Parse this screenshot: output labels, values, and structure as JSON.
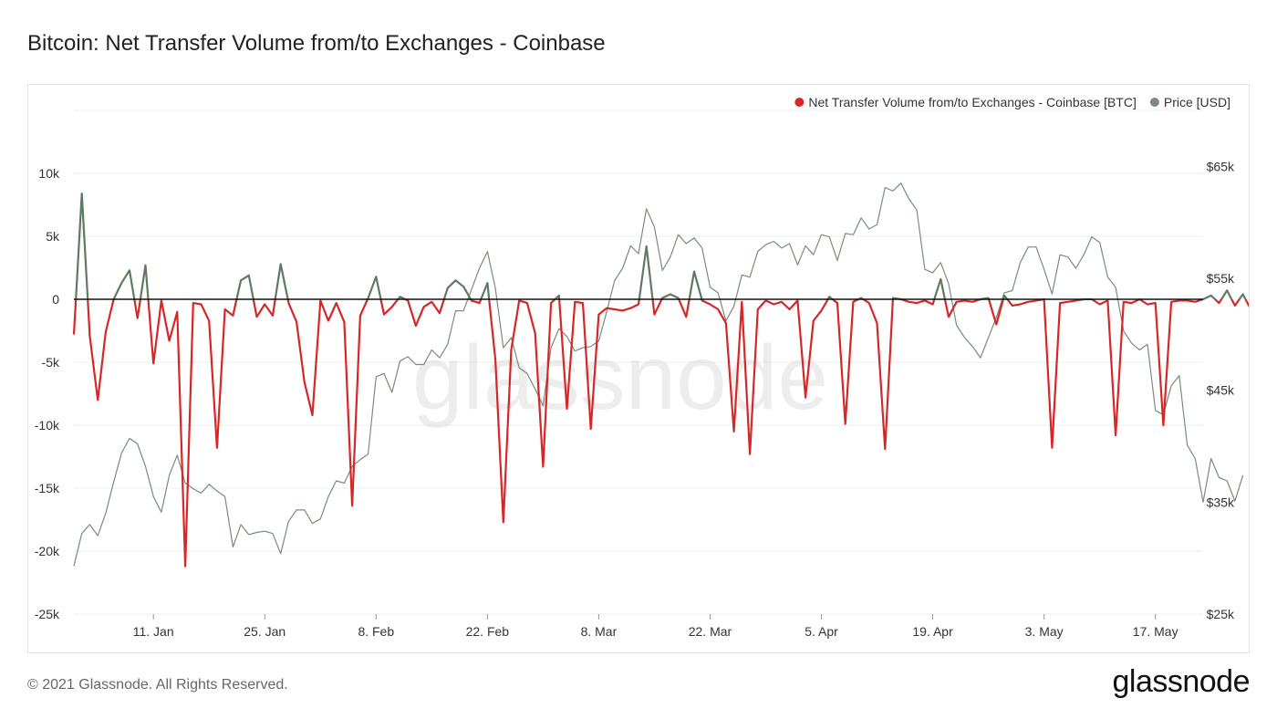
{
  "title": "Bitcoin: Net Transfer Volume from/to Exchanges - Coinbase",
  "footer": "© 2021 Glassnode. All Rights Reserved.",
  "brand": "glassnode",
  "watermark": "glassnode",
  "colors": {
    "net": "#d62728",
    "price": "#7a8c7b",
    "zero": "#111111",
    "grid": "#ececec"
  },
  "chart_data": {
    "type": "line",
    "title": "Bitcoin: Net Transfer Volume from/to Exchanges - Coinbase",
    "x_range": [
      "2021-01-01",
      "2021-05-23"
    ],
    "x_ticks": [
      {
        "date": "2021-01-11",
        "label": "11. Jan"
      },
      {
        "date": "2021-01-25",
        "label": "25. Jan"
      },
      {
        "date": "2021-02-08",
        "label": "8. Feb"
      },
      {
        "date": "2021-02-22",
        "label": "22. Feb"
      },
      {
        "date": "2021-03-08",
        "label": "8. Mar"
      },
      {
        "date": "2021-03-22",
        "label": "22. Mar"
      },
      {
        "date": "2021-04-05",
        "label": "5. Apr"
      },
      {
        "date": "2021-04-19",
        "label": "19. Apr"
      },
      {
        "date": "2021-05-03",
        "label": "3. May"
      },
      {
        "date": "2021-05-17",
        "label": "17. May"
      }
    ],
    "y_left": {
      "range": [
        -25000,
        15000
      ],
      "ticks": [
        {
          "value": 10000,
          "label": "10k"
        },
        {
          "value": 5000,
          "label": "5k"
        },
        {
          "value": 0,
          "label": "0"
        },
        {
          "value": -5000,
          "label": "-5k"
        },
        {
          "value": -10000,
          "label": "-10k"
        },
        {
          "value": -15000,
          "label": "-15k"
        },
        {
          "value": -20000,
          "label": "-20k"
        },
        {
          "value": -25000,
          "label": "-25k"
        }
      ]
    },
    "y_right": {
      "range": [
        25000,
        70000
      ],
      "ticks": [
        {
          "value": 65000,
          "label": "$65k"
        },
        {
          "value": 55000,
          "label": "$55k"
        },
        {
          "value": 45000,
          "label": "$45k"
        },
        {
          "value": 35000,
          "label": "$35k"
        },
        {
          "value": 25000,
          "label": "$25k"
        }
      ]
    },
    "legend_position": "top-right",
    "series": [
      {
        "name": "Net Transfer Volume from/to Exchanges - Coinbase [BTC]",
        "axis": "left",
        "start_date": "2021-01-01",
        "values": [
          -2800,
          8400,
          -2900,
          -8000,
          -2600,
          0,
          1300,
          2300,
          -1500,
          2700,
          -5100,
          -100,
          -3300,
          -1000,
          -21200,
          -300,
          -400,
          -1700,
          -11800,
          -800,
          -1300,
          1500,
          1900,
          -1400,
          -400,
          -1300,
          2800,
          -300,
          -1800,
          -6600,
          -9200,
          -100,
          -1700,
          -300,
          -1800,
          -16400,
          -1300,
          100,
          1800,
          -1200,
          -600,
          200,
          -100,
          -2100,
          -600,
          -200,
          -1100,
          900,
          1500,
          1000,
          -100,
          -300,
          1300,
          -4800,
          -17700,
          -4000,
          -100,
          -300,
          -2700,
          -13300,
          -300,
          300,
          -8700,
          -200,
          -300,
          -10300,
          -1200,
          -700,
          -800,
          -900,
          -700,
          -400,
          4200,
          -1200,
          100,
          400,
          100,
          -1400,
          2200,
          -100,
          -400,
          -800,
          -1900,
          -10500,
          -200,
          -12300,
          -800,
          -100,
          -400,
          -200,
          -800,
          -100,
          -7800,
          -1700,
          -900,
          200,
          -300,
          -9900,
          -200,
          100,
          -300,
          -1900,
          -11900,
          100,
          0,
          -200,
          -300,
          -100,
          -400,
          1600,
          -1400,
          -200,
          -100,
          -200,
          0,
          100,
          -2000,
          300,
          -500,
          -400,
          -200,
          -100,
          0,
          -11800,
          -300,
          -200,
          -100,
          0,
          0,
          -400,
          -100,
          -10800,
          -200,
          -300,
          0,
          -400,
          -300,
          -10000,
          -200,
          -100,
          -100,
          -200,
          0,
          300,
          -300,
          700,
          -500,
          400,
          -800
        ]
      },
      {
        "name": "Price [USD]",
        "axis": "right",
        "start_date": "2021-01-01",
        "values": [
          29300,
          32200,
          33000,
          32000,
          34000,
          36800,
          39400,
          40700,
          40200,
          38200,
          35500,
          34100,
          37400,
          39200,
          36700,
          36200,
          35800,
          36600,
          36000,
          35500,
          31000,
          33000,
          32100,
          32300,
          32400,
          32200,
          30400,
          33300,
          34300,
          34300,
          33100,
          33500,
          35500,
          36900,
          36700,
          38200,
          38800,
          39300,
          46200,
          46500,
          44800,
          47600,
          48000,
          47300,
          47300,
          48600,
          47900,
          49100,
          52100,
          52100,
          54000,
          55900,
          57400,
          54100,
          48800,
          49700,
          47000,
          46500,
          45100,
          43600,
          48800,
          50500,
          49800,
          48500,
          48800,
          48900,
          49400,
          52000,
          54800,
          55900,
          57900,
          57200,
          61200,
          59600,
          55700,
          56900,
          58900,
          58100,
          58600,
          57700,
          54200,
          53700,
          51200,
          52500,
          55300,
          55100,
          57400,
          58000,
          58300,
          57700,
          58100,
          56200,
          57900,
          57100,
          58900,
          58700,
          56600,
          59000,
          58900,
          60400,
          59400,
          59800,
          63100,
          62800,
          63500,
          62100,
          61100,
          55800,
          55500,
          56400,
          54500,
          50800,
          49700,
          48900,
          47900,
          49700,
          51500,
          53700,
          53900,
          56400,
          57800,
          57800,
          55800,
          53600,
          57100,
          56900,
          55900,
          57100,
          58700,
          58200,
          55100,
          54200,
          50300,
          49200,
          48600,
          49100,
          43200,
          42800,
          45400,
          46300,
          40100,
          38900,
          35000,
          38900,
          37200,
          36900,
          35100,
          37400
        ]
      }
    ]
  },
  "legend": [
    {
      "label": "Net Transfer Volume from/to Exchanges - Coinbase [BTC]",
      "color": "#d62728"
    },
    {
      "label": "Price [USD]",
      "color": "#7a8c7b"
    }
  ]
}
